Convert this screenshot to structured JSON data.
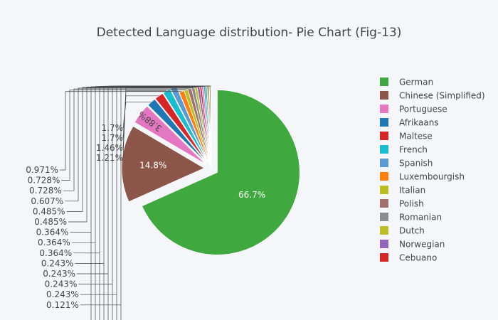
{
  "chart_data": {
    "type": "pie",
    "title": "Detected Language distribution- Pie Chart (Fig-13)",
    "direction": "clockwise",
    "start": "top",
    "outside_labels_shown_for_small_slices": [
      "1.7%",
      "1.7%",
      "1.46%",
      "1.21%",
      "0.971%",
      "0.728%",
      "0.728%",
      "0.607%",
      "0.485%",
      "0.485%",
      "0.364%",
      "0.364%",
      "0.364%",
      "0.243%",
      "0.243%",
      "0.243%",
      "0.243%",
      "0.121%"
    ],
    "slices": [
      {
        "label": "German",
        "value": 66.7,
        "text": "66.7%",
        "color": "#3fa83f",
        "pulled": true,
        "legend": true
      },
      {
        "label": "Chinese (Simplified)",
        "value": 14.8,
        "text": "14.8%",
        "color": "#8c564b",
        "pulled": true,
        "legend": true
      },
      {
        "label": "Portuguese",
        "value": 3.88,
        "text": "3.88%",
        "color": "#e377c2",
        "pulled": true,
        "legend": true
      },
      {
        "label": "Afrikaans",
        "value": 1.7,
        "text": "1.7%",
        "color": "#1f77b4",
        "pulled": true,
        "legend": true
      },
      {
        "label": "Maltese",
        "value": 1.7,
        "text": "1.7%",
        "color": "#d62728",
        "pulled": true,
        "legend": true
      },
      {
        "label": "French",
        "value": 1.46,
        "text": "1.46%",
        "color": "#17becf",
        "pulled": true,
        "legend": true
      },
      {
        "label": "Spanish",
        "value": 1.21,
        "text": "1.21%",
        "color": "#5b9bd5",
        "pulled": true,
        "legend": true
      },
      {
        "label": "Luxembourgish",
        "value": 0.971,
        "text": "0.971%",
        "color": "#ff7f0e",
        "pulled": false,
        "legend": true
      },
      {
        "label": "Italian",
        "value": 0.728,
        "text": "0.728%",
        "color": "#bcbd22",
        "pulled": false,
        "legend": true
      },
      {
        "label": "Polish",
        "value": 0.728,
        "text": "0.728%",
        "color": "#a0706a",
        "pulled": false,
        "legend": true
      },
      {
        "label": "Romanian",
        "value": 0.607,
        "text": "0.607%",
        "color": "#8c8c8c",
        "pulled": false,
        "legend": true
      },
      {
        "label": "Dutch",
        "value": 0.485,
        "text": "0.485%",
        "color": "#bdbd2a",
        "pulled": false,
        "legend": true
      },
      {
        "label": "Norwegian",
        "value": 0.485,
        "text": "0.485%",
        "color": "#9467bd",
        "pulled": false,
        "legend": true
      },
      {
        "label": "Cebuano",
        "value": 0.364,
        "text": "0.364%",
        "color": "#d62728",
        "pulled": false,
        "legend": true
      },
      {
        "label": "",
        "value": 0.364,
        "text": "0.364%",
        "color": "#e377c2",
        "pulled": false,
        "legend": false
      },
      {
        "label": "",
        "value": 0.364,
        "text": "0.364%",
        "color": "#17becf",
        "pulled": false,
        "legend": false
      },
      {
        "label": "",
        "value": 0.243,
        "text": "0.243%",
        "color": "#1f77b4",
        "pulled": false,
        "legend": false
      },
      {
        "label": "",
        "value": 0.243,
        "text": "0.243%",
        "color": "#ff7f0e",
        "pulled": false,
        "legend": false
      },
      {
        "label": "",
        "value": 0.243,
        "text": "0.243%",
        "color": "#2ca02c",
        "pulled": false,
        "legend": false
      },
      {
        "label": "",
        "value": 0.243,
        "text": "0.243%",
        "color": "#8c564b",
        "pulled": false,
        "legend": false
      },
      {
        "label": "",
        "value": 0.121,
        "text": "0.121%",
        "color": "#7f7f7f",
        "pulled": false,
        "legend": false
      }
    ]
  }
}
